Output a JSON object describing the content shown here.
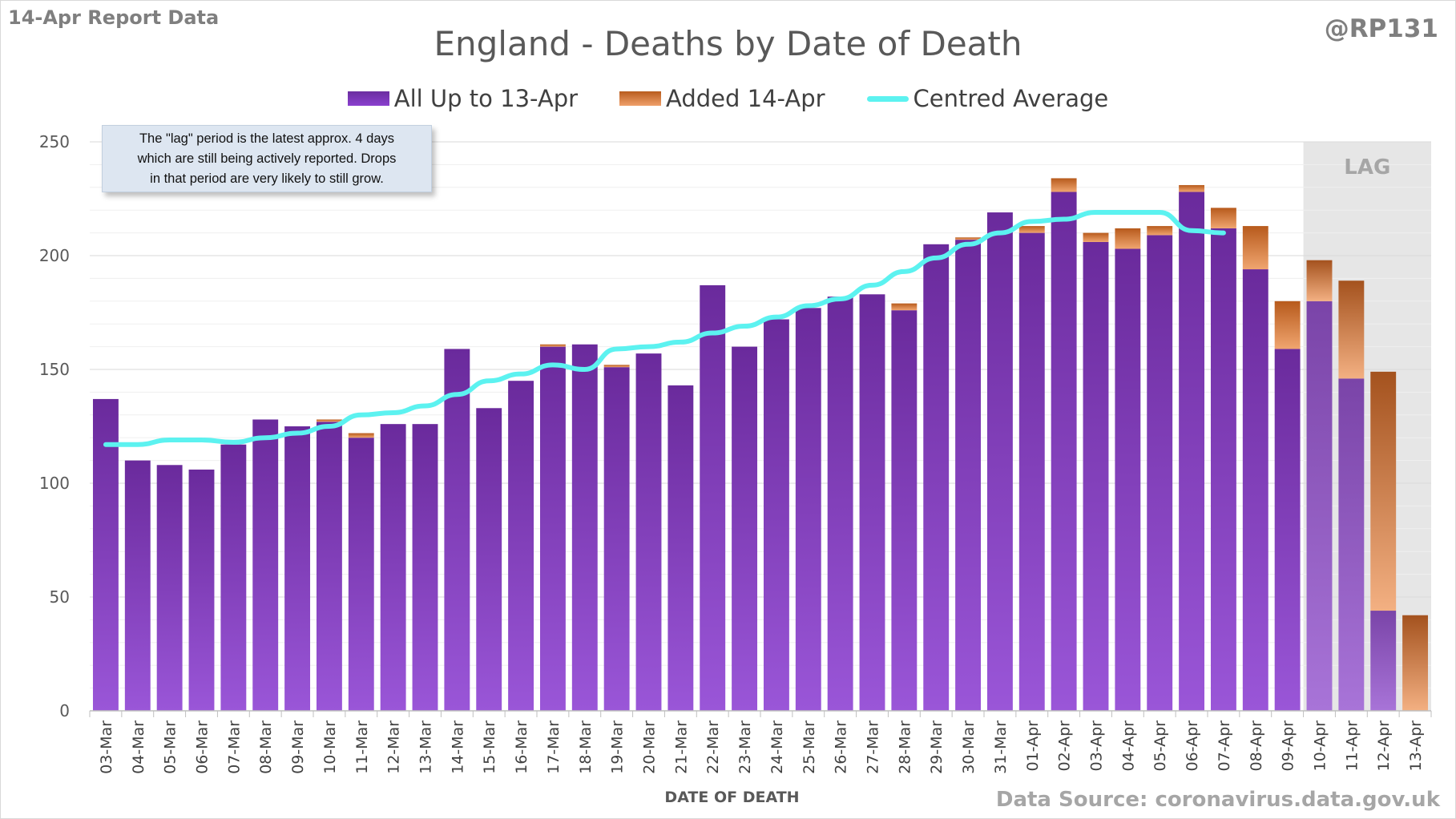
{
  "header": {
    "report_label": "14-Apr Report Data",
    "handle": "@RP131",
    "source": "Data Source: coronavirus.data.gov.uk"
  },
  "note": {
    "lines": [
      "The \"lag\" period is the latest approx. 4 days",
      "which are still being actively reported.  Drops",
      "in that period are very likely to still grow."
    ]
  },
  "colors": {
    "purple": "#7a33c0",
    "orange": "#e07a34",
    "average_line": "#5cf2f0",
    "lag_shade": "#e6e6e6"
  },
  "chart_data": {
    "type": "bar",
    "title": "England - Deaths by Date of Death",
    "xlabel": "DATE OF DEATH",
    "ylabel": "",
    "ylim": [
      0,
      250
    ],
    "yticks": [
      0,
      50,
      100,
      150,
      200,
      250
    ],
    "stacked": true,
    "grid": true,
    "legend_position": "top",
    "lag_label": "LAG",
    "lag_categories": [
      "10-Apr",
      "11-Apr",
      "12-Apr",
      "13-Apr"
    ],
    "categories": [
      "03-Mar",
      "04-Mar",
      "05-Mar",
      "06-Mar",
      "07-Mar",
      "08-Mar",
      "09-Mar",
      "10-Mar",
      "11-Mar",
      "12-Mar",
      "13-Mar",
      "14-Mar",
      "15-Mar",
      "16-Mar",
      "17-Mar",
      "18-Mar",
      "19-Mar",
      "20-Mar",
      "21-Mar",
      "22-Mar",
      "23-Mar",
      "24-Mar",
      "25-Mar",
      "26-Mar",
      "27-Mar",
      "28-Mar",
      "29-Mar",
      "30-Mar",
      "31-Mar",
      "01-Apr",
      "02-Apr",
      "03-Apr",
      "04-Apr",
      "05-Apr",
      "06-Apr",
      "07-Apr",
      "08-Apr",
      "09-Apr",
      "10-Apr",
      "11-Apr",
      "12-Apr",
      "13-Apr"
    ],
    "series": [
      {
        "name": "All Up to 13-Apr",
        "values": [
          137,
          110,
          108,
          106,
          117,
          128,
          125,
          127,
          120,
          126,
          126,
          159,
          133,
          145,
          160,
          161,
          151,
          157,
          143,
          187,
          160,
          172,
          177,
          182,
          183,
          176,
          205,
          207,
          219,
          210,
          228,
          206,
          203,
          209,
          228,
          212,
          194,
          159,
          180,
          146,
          44,
          0
        ]
      },
      {
        "name": "Added 14-Apr",
        "values": [
          0,
          0,
          0,
          0,
          0,
          0,
          0,
          1,
          2,
          0,
          0,
          0,
          0,
          0,
          1,
          0,
          1,
          0,
          0,
          0,
          0,
          0,
          0,
          0,
          0,
          3,
          0,
          1,
          0,
          3,
          6,
          4,
          9,
          4,
          3,
          9,
          19,
          21,
          18,
          43,
          105,
          42
        ]
      },
      {
        "name": "Centred Average",
        "type": "line",
        "values": [
          117,
          117,
          119,
          119,
          118,
          120,
          122,
          125,
          130,
          131,
          134,
          139,
          145,
          148,
          152,
          150,
          159,
          160,
          162,
          166,
          169,
          173,
          178,
          181,
          187,
          193,
          199,
          205,
          210,
          215,
          216,
          219,
          219,
          219,
          211,
          210,
          null,
          null,
          null,
          null,
          null,
          null
        ]
      }
    ]
  }
}
